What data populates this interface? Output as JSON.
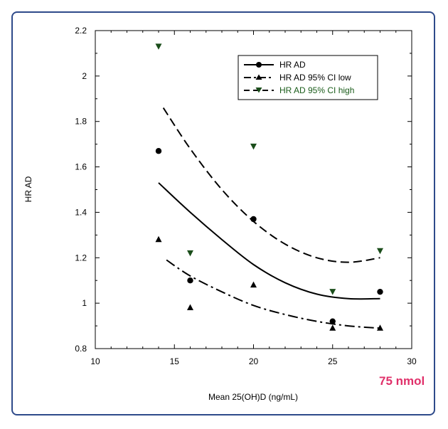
{
  "chart_data": {
    "type": "scatter",
    "title": "",
    "xlabel": "Mean 25(OH)D (ng/mL)",
    "ylabel": "HR AD",
    "xlim": [
      10,
      30
    ],
    "ylim": [
      0.8,
      2.2
    ],
    "x_ticks": [
      10,
      15,
      20,
      25,
      30
    ],
    "y_ticks": [
      0.8,
      1,
      1.2,
      1.4,
      1.6,
      1.8,
      2,
      2.2
    ],
    "y_tick_labels": [
      "0.8",
      "1",
      "1.2",
      "1.4",
      "1.6",
      "1.8",
      "2",
      "2.2"
    ],
    "legend_position": "top-right",
    "series": [
      {
        "name": "HR AD",
        "marker": "circle",
        "line_style": "solid",
        "label_color": "#000000",
        "points": [
          {
            "x": 14,
            "y": 1.67
          },
          {
            "x": 16,
            "y": 1.1
          },
          {
            "x": 20,
            "y": 1.37
          },
          {
            "x": 25,
            "y": 0.92
          },
          {
            "x": 28,
            "y": 1.05
          }
        ],
        "fit_curve": [
          {
            "x": 14,
            "y": 1.53
          },
          {
            "x": 16,
            "y": 1.4
          },
          {
            "x": 18,
            "y": 1.28
          },
          {
            "x": 20,
            "y": 1.17
          },
          {
            "x": 22,
            "y": 1.09
          },
          {
            "x": 24,
            "y": 1.04
          },
          {
            "x": 26,
            "y": 1.02
          },
          {
            "x": 28,
            "y": 1.02
          }
        ]
      },
      {
        "name": "HR AD 95% CI low",
        "marker": "triangle-up",
        "line_style": "dash-dot",
        "label_color": "#000000",
        "points": [
          {
            "x": 14,
            "y": 1.28
          },
          {
            "x": 16,
            "y": 0.98
          },
          {
            "x": 20,
            "y": 1.08
          },
          {
            "x": 25,
            "y": 0.89
          },
          {
            "x": 28,
            "y": 0.89
          }
        ],
        "fit_curve": [
          {
            "x": 14.5,
            "y": 1.19
          },
          {
            "x": 16,
            "y": 1.12
          },
          {
            "x": 18,
            "y": 1.05
          },
          {
            "x": 20,
            "y": 0.99
          },
          {
            "x": 22,
            "y": 0.95
          },
          {
            "x": 24,
            "y": 0.92
          },
          {
            "x": 26,
            "y": 0.9
          },
          {
            "x": 28,
            "y": 0.89
          }
        ]
      },
      {
        "name": "HR AD 95% CI high",
        "marker": "triangle-down",
        "line_style": "dashed",
        "label_color": "#1a5c1a",
        "marker_color": "#1a4d1a",
        "points": [
          {
            "x": 14,
            "y": 2.13
          },
          {
            "x": 16,
            "y": 1.22
          },
          {
            "x": 20,
            "y": 1.69
          },
          {
            "x": 25,
            "y": 1.05
          },
          {
            "x": 28,
            "y": 1.23
          }
        ],
        "fit_curve": [
          {
            "x": 14.3,
            "y": 1.86
          },
          {
            "x": 16,
            "y": 1.68
          },
          {
            "x": 18,
            "y": 1.5
          },
          {
            "x": 20,
            "y": 1.36
          },
          {
            "x": 22,
            "y": 1.26
          },
          {
            "x": 24,
            "y": 1.2
          },
          {
            "x": 26,
            "y": 1.18
          },
          {
            "x": 28,
            "y": 1.2
          }
        ]
      }
    ]
  },
  "annotation": {
    "text": "75 nmol",
    "color": "#e0306a"
  },
  "frame_color": "#2e4a8a"
}
